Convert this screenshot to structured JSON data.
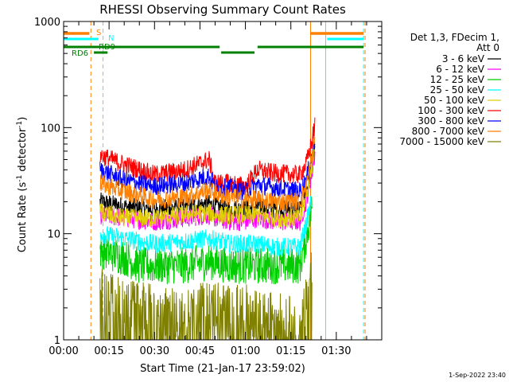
{
  "chart_data": {
    "type": "line",
    "title": "RHESSI Observing Summary Count Rates",
    "xlabel": "Start Time (21-Jan-17 23:59:02)",
    "ylabel_main": "Count Rate (s",
    "ylabel_sup1": "-1",
    "ylabel_mid": " detector",
    "ylabel_sup2": "-1",
    "ylabel_end": ")",
    "yscale": "log",
    "ylim": [
      1,
      1000
    ],
    "xlim_minutes": [
      0,
      105
    ],
    "x_tick_labels": [
      "00:00",
      "00:15",
      "00:30",
      "00:45",
      "01:00",
      "01:15",
      "01:30"
    ],
    "x_tick_minutes": [
      0,
      15,
      30,
      45,
      60,
      75,
      90
    ],
    "y_tick_labels": [
      "1",
      "10",
      "100",
      "1000"
    ],
    "y_tick_values": [
      1,
      10,
      100,
      1000
    ],
    "legend_header": [
      "Det 1,3, FDecim 1,",
      "Att 0"
    ],
    "legend_position": "right",
    "timestamp": "1-Sep-2022 23:40",
    "series": [
      {
        "name": "3 - 6 keV",
        "color": "#000000",
        "points": [
          [
            12,
            20
          ],
          [
            20,
            18
          ],
          [
            30,
            17
          ],
          [
            40,
            18
          ],
          [
            48,
            19
          ],
          [
            50,
            18
          ],
          [
            55,
            17
          ],
          [
            60,
            17
          ],
          [
            64,
            18
          ],
          [
            70,
            17
          ],
          [
            78,
            17
          ],
          [
            80,
            25
          ],
          [
            82,
            42
          ],
          [
            83,
            70
          ]
        ]
      },
      {
        "name": "6 - 12 keV",
        "color": "#ff00ff",
        "points": [
          [
            12,
            15
          ],
          [
            20,
            14
          ],
          [
            30,
            13
          ],
          [
            40,
            14
          ],
          [
            48,
            15
          ],
          [
            50,
            14
          ],
          [
            55,
            13
          ],
          [
            60,
            13
          ],
          [
            64,
            14
          ],
          [
            70,
            13
          ],
          [
            78,
            13
          ],
          [
            80,
            20
          ],
          [
            82,
            38
          ],
          [
            83,
            60
          ]
        ]
      },
      {
        "name": "12 - 25 keV",
        "color": "#00cc00",
        "points": [
          [
            12,
            7
          ],
          [
            20,
            6
          ],
          [
            25,
            5
          ],
          [
            30,
            5
          ],
          [
            40,
            5
          ],
          [
            48,
            5.5
          ],
          [
            55,
            5
          ],
          [
            60,
            5
          ],
          [
            64,
            5
          ],
          [
            70,
            5
          ],
          [
            78,
            5
          ],
          [
            80,
            9
          ],
          [
            82,
            18
          ]
        ]
      },
      {
        "name": "25 - 50 keV",
        "color": "#00ffff",
        "points": [
          [
            12,
            10
          ],
          [
            20,
            9
          ],
          [
            30,
            8
          ],
          [
            40,
            8.5
          ],
          [
            48,
            9
          ],
          [
            55,
            8
          ],
          [
            60,
            8
          ],
          [
            64,
            8
          ],
          [
            70,
            7.5
          ],
          [
            78,
            7.5
          ],
          [
            80,
            12
          ],
          [
            82,
            22
          ]
        ]
      },
      {
        "name": "50 - 100 keV",
        "color": "#e0d000",
        "points": [
          [
            12,
            16
          ],
          [
            20,
            14
          ],
          [
            30,
            14
          ],
          [
            40,
            15
          ],
          [
            48,
            16
          ],
          [
            50,
            15
          ],
          [
            55,
            15
          ],
          [
            60,
            15
          ],
          [
            64,
            15
          ],
          [
            70,
            14
          ],
          [
            78,
            14
          ],
          [
            80,
            22
          ],
          [
            82,
            45
          ],
          [
            83,
            80
          ]
        ]
      },
      {
        "name": "100 - 300 keV",
        "color": "#ff0000",
        "points": [
          [
            12,
            55
          ],
          [
            20,
            45
          ],
          [
            30,
            36
          ],
          [
            40,
            40
          ],
          [
            48,
            50
          ],
          [
            50,
            30
          ],
          [
            55,
            30
          ],
          [
            60,
            28
          ],
          [
            64,
            40
          ],
          [
            70,
            37
          ],
          [
            78,
            36
          ],
          [
            80,
            45
          ],
          [
            82,
            75
          ],
          [
            83,
            110
          ]
        ]
      },
      {
        "name": "300 - 800 keV",
        "color": "#0000ff",
        "points": [
          [
            12,
            40
          ],
          [
            20,
            32
          ],
          [
            30,
            28
          ],
          [
            40,
            30
          ],
          [
            48,
            35
          ],
          [
            50,
            27
          ],
          [
            55,
            27
          ],
          [
            60,
            25
          ],
          [
            64,
            29
          ],
          [
            70,
            27
          ],
          [
            78,
            25
          ],
          [
            80,
            32
          ],
          [
            82,
            55
          ],
          [
            83,
            85
          ]
        ]
      },
      {
        "name": "800 - 7000 keV",
        "color": "#ff8000",
        "points": [
          [
            12,
            30
          ],
          [
            20,
            25
          ],
          [
            30,
            21
          ],
          [
            40,
            22
          ],
          [
            48,
            26
          ],
          [
            50,
            24
          ],
          [
            55,
            22
          ],
          [
            60,
            21
          ],
          [
            64,
            21
          ],
          [
            70,
            20
          ],
          [
            78,
            20
          ],
          [
            80,
            28
          ],
          [
            82,
            52
          ],
          [
            83,
            90
          ]
        ]
      },
      {
        "name": "7000 - 15000 keV",
        "color": "#808000",
        "points": [
          [
            12,
            2.5
          ],
          [
            20,
            2
          ],
          [
            30,
            1.8
          ],
          [
            40,
            1.5
          ],
          [
            48,
            2
          ],
          [
            55,
            1.7
          ],
          [
            60,
            1.8
          ],
          [
            64,
            1.5
          ],
          [
            70,
            1.5
          ],
          [
            78,
            1.3
          ],
          [
            80,
            2
          ],
          [
            82,
            4
          ]
        ]
      }
    ],
    "state_bars": [
      {
        "label": "S",
        "color": "#ff8000",
        "level": 1,
        "ranges": [
          [
            0,
            8.5
          ],
          [
            81.5,
            99
          ]
        ]
      },
      {
        "label": "N",
        "color": "#00ffff",
        "level": 2,
        "ranges": [
          [
            0,
            11.5
          ],
          [
            87,
            99
          ]
        ]
      },
      {
        "label": "RD9",
        "color": "#008000",
        "level": 3,
        "ranges": [
          [
            0,
            51.5
          ],
          [
            64,
            99
          ]
        ]
      },
      {
        "label": "RD6",
        "color": "#008000",
        "level": 4,
        "ranges": [
          [
            10,
            14.5
          ],
          [
            52,
            63
          ]
        ]
      }
    ],
    "vlines": [
      {
        "x": 0,
        "color": "#00ffff",
        "style": "solid"
      },
      {
        "x": 9,
        "color": "#ff8000",
        "style": "dashed"
      },
      {
        "x": 13,
        "color": "#00ffff",
        "style": "dashed"
      },
      {
        "x": 81.5,
        "color": "#ff8000",
        "style": "solid"
      },
      {
        "x": 86.5,
        "color": "#00ffff",
        "style": "solid"
      },
      {
        "x": 99,
        "color": "#00ffff",
        "style": "dashed"
      },
      {
        "x": 99.5,
        "color": "#ff8000",
        "style": "dashed"
      }
    ]
  }
}
